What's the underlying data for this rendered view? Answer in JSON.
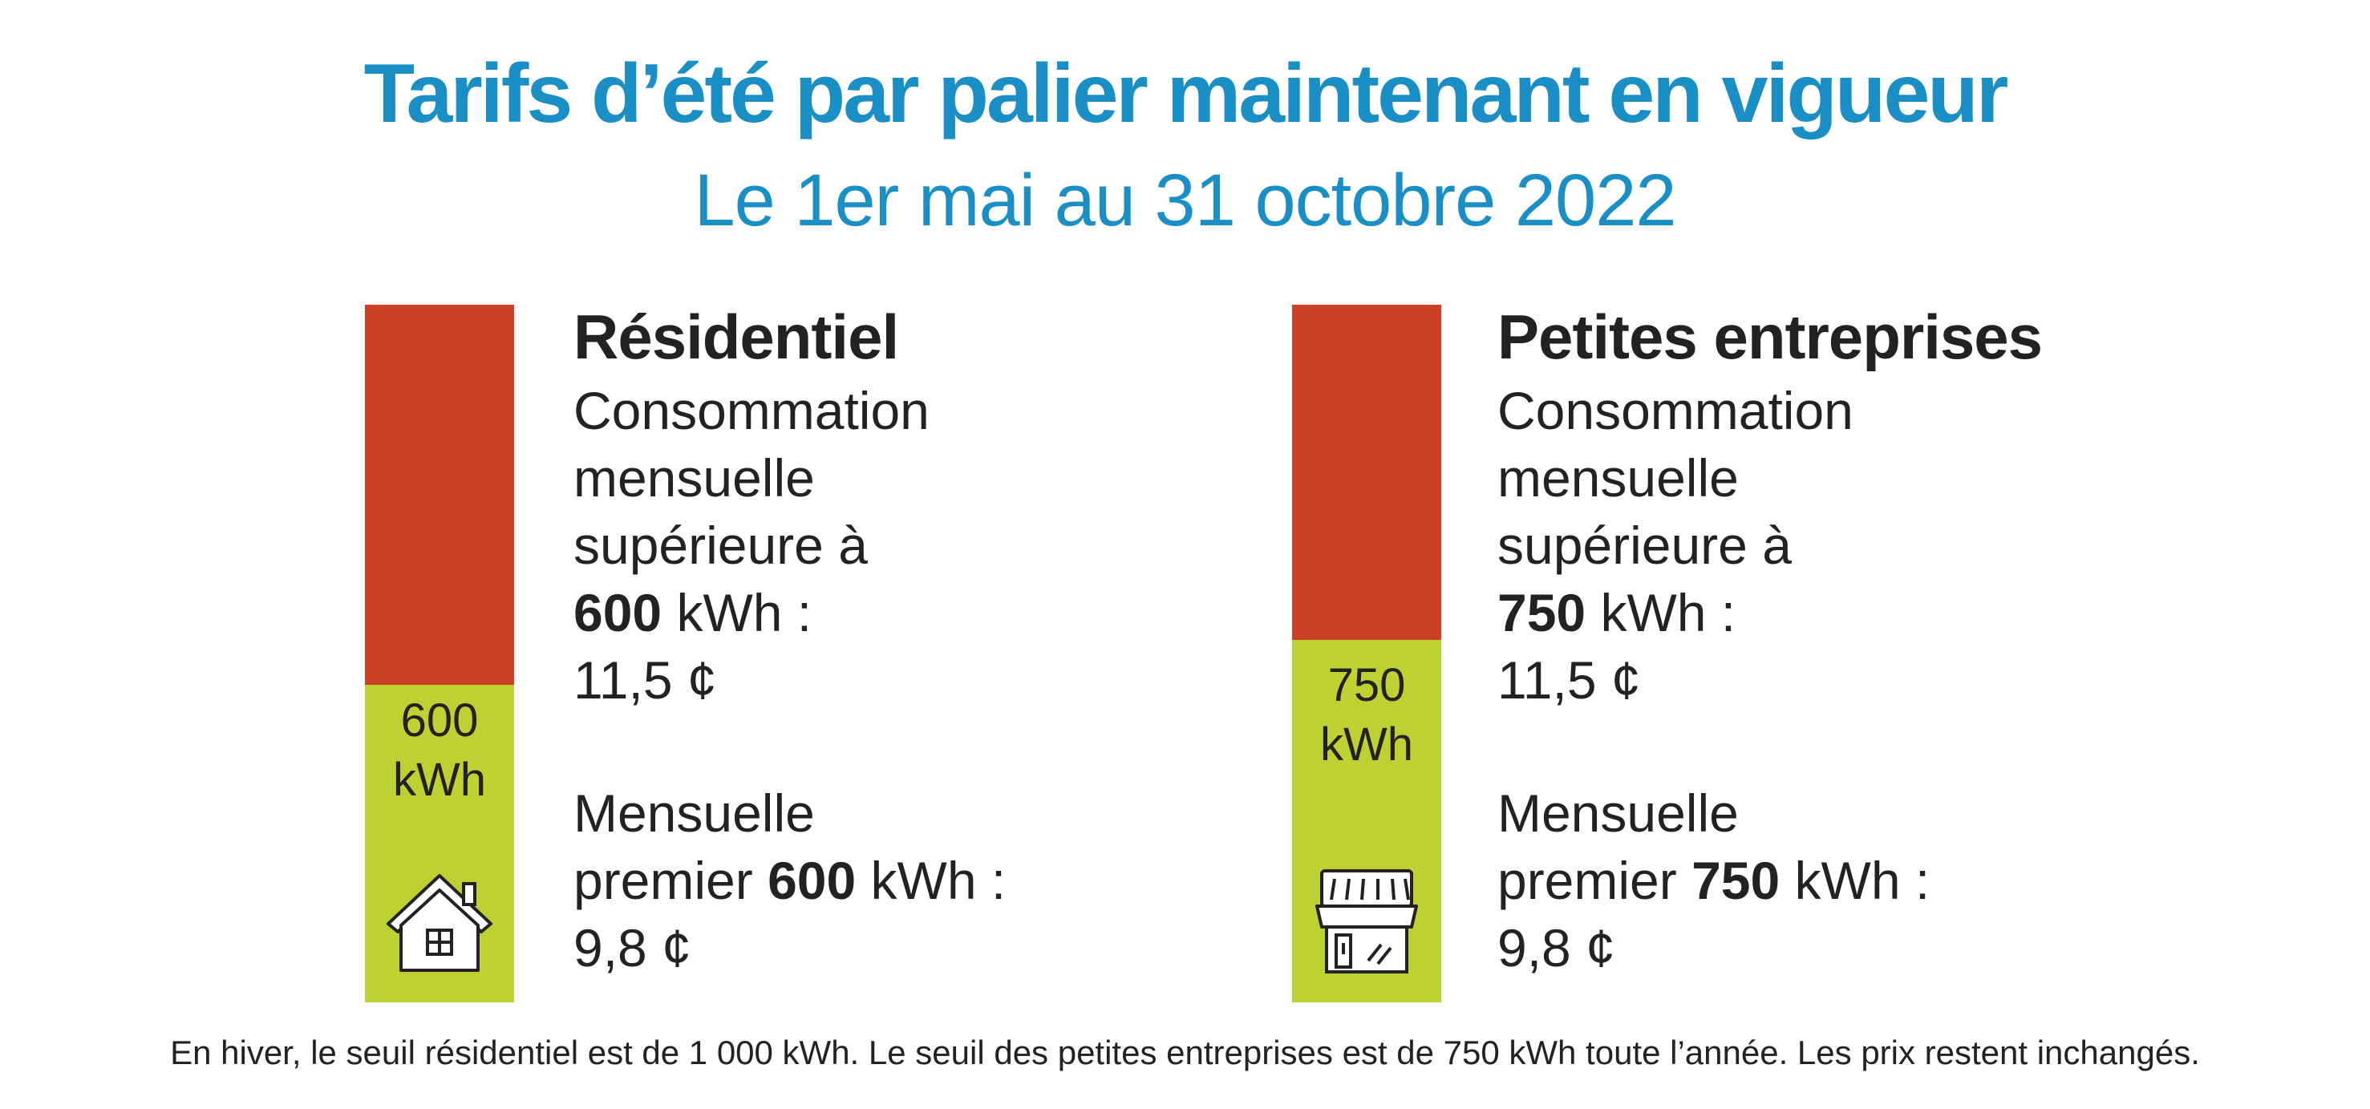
{
  "header": {
    "title": "Tarifs d’été par palier maintenant en vigueur",
    "subtitle": "Le 1er mai au 31 octobre 2022"
  },
  "colors": {
    "accent": "#1a8fc5",
    "upper_tier": "#cc4125",
    "lower_tier": "#bdd232",
    "text": "#222222"
  },
  "residential": {
    "title": "Résidentiel",
    "icon": "house-icon",
    "threshold_share": 0.455,
    "threshold_value": "600",
    "threshold_unit": "kWh",
    "upper_line1": "Consommation",
    "upper_line2": "mensuelle",
    "upper_line3": "supérieure à",
    "upper_value": "600",
    "upper_unit": " kWh :",
    "upper_price": "11,5 ¢",
    "lower_line1": "Mensuelle",
    "lower_prefix": "premier ",
    "lower_value": "600",
    "lower_unit": " kWh :",
    "lower_price": "9,8 ¢"
  },
  "business": {
    "title": "Petites entreprises",
    "icon": "storefront-icon",
    "threshold_share": 0.52,
    "threshold_value": "750",
    "threshold_unit": "kWh",
    "upper_line1": "Consommation",
    "upper_line2": "mensuelle",
    "upper_line3": "supérieure à",
    "upper_value": "750",
    "upper_unit": " kWh :",
    "upper_price": "11,5 ¢",
    "lower_line1": "Mensuelle",
    "lower_prefix": "premier ",
    "lower_value": "750",
    "lower_unit": " kWh :",
    "lower_price": "9,8 ¢"
  },
  "footnote": "En hiver, le seuil résidentiel est de 1 000 kWh. Le seuil des petites entreprises est de 750 kWh toute l’année. Les prix restent inchangés."
}
